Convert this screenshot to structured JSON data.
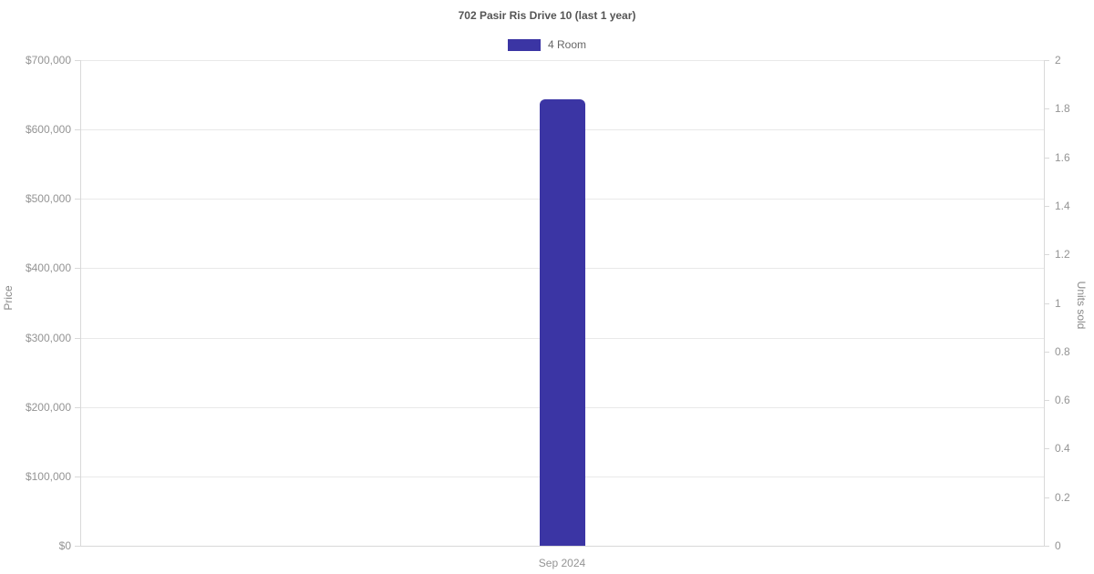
{
  "chart_data": {
    "type": "bar",
    "title": "702 Pasir Ris Drive 10 (last 1 year)",
    "legend_position": "top",
    "legend": [
      {
        "label": "4 Room",
        "color": "#3b35a4"
      }
    ],
    "categories": [
      "Sep 2024"
    ],
    "series": [
      {
        "name": "4 Room",
        "axis": "left",
        "values": [
          644000
        ]
      }
    ],
    "left_axis": {
      "label": "Price",
      "min": 0,
      "max": 700000,
      "tick_step": 100000,
      "tick_labels": [
        "$0",
        "$100,000",
        "$200,000",
        "$300,000",
        "$400,000",
        "$500,000",
        "$600,000",
        "$700,000"
      ]
    },
    "right_axis": {
      "label": "Units sold",
      "min": 0,
      "max": 2,
      "tick_step": 0.2,
      "tick_labels": [
        "0",
        "0.2",
        "0.4",
        "0.6",
        "0.8",
        "1",
        "1.2",
        "1.4",
        "1.6",
        "1.8",
        "2"
      ]
    },
    "grid": "horizontal-only",
    "colors": {
      "bar": "#3b35a4",
      "gridline": "#e9e9e9",
      "axis_line": "#d9d9d9",
      "tick_text": "#949494",
      "axis_title_text": "#8a8a8a",
      "title_text": "#555555",
      "legend_text": "#666666",
      "background": "#ffffff"
    }
  }
}
